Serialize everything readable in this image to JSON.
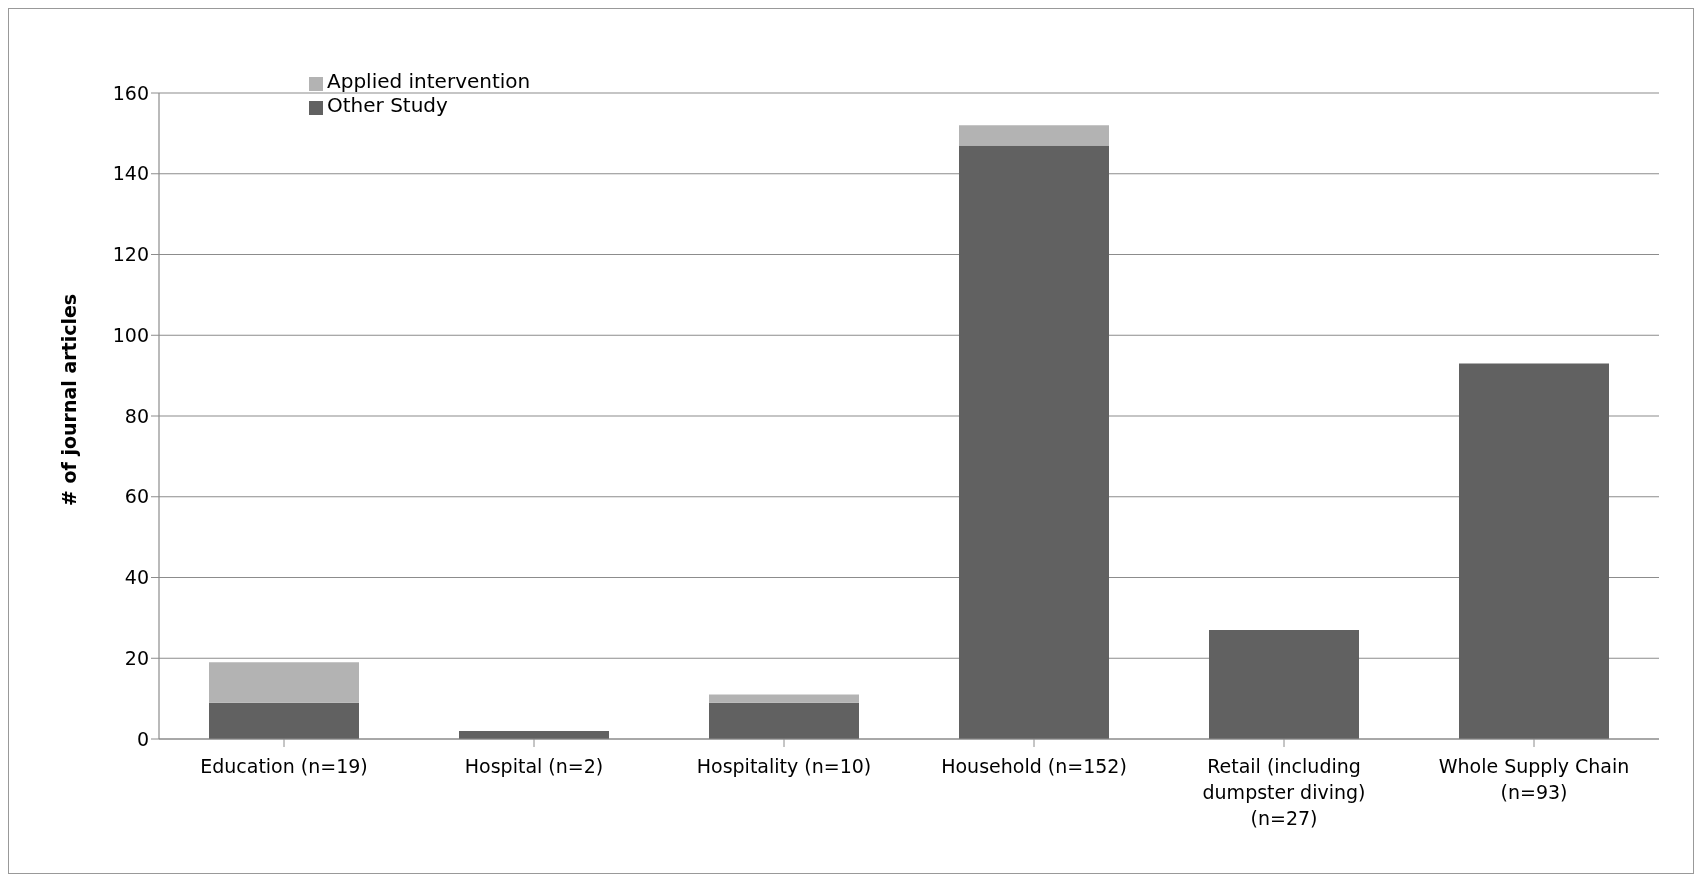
{
  "chart_data": {
    "type": "bar",
    "stacked": true,
    "ylabel": "# of journal articles",
    "categories": [
      "Education (n=19)",
      "Hospital (n=2)",
      "Hospitality (n=10)",
      "Household (n=152)",
      "Retail (including dumpster diving) (n=27)",
      "Whole Supply Chain (n=93)"
    ],
    "series": [
      {
        "name": "Other Study",
        "color": "#616161",
        "values": [
          9,
          2,
          9,
          147,
          27,
          93
        ]
      },
      {
        "name": "Applied intervention",
        "color": "#b3b3b3",
        "values": [
          10,
          0,
          2,
          5,
          0,
          0
        ]
      }
    ],
    "ylim": [
      0,
      160
    ],
    "yticks": [
      0,
      20,
      40,
      60,
      80,
      100,
      120,
      140,
      160
    ],
    "grid": "y",
    "legend": "top left"
  }
}
